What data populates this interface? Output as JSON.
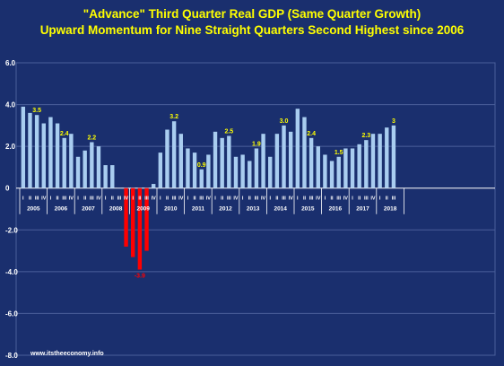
{
  "chart_data": {
    "type": "bar",
    "title": "\"Advance\" Third Quarter Real GDP (Same Quarter Growth)",
    "subtitle": "Upward Momentum for Nine Straight Quarters Second Highest since 2006",
    "source": "www.itstheeconomy.info",
    "ylim": [
      -8,
      6
    ],
    "yticks": [
      6,
      4,
      2,
      0,
      -2,
      -4,
      -6,
      -8
    ],
    "ytick_labels": [
      "6.0",
      "4.0",
      "2.0",
      "0",
      "-2.0",
      "-4.0",
      "-6.0",
      "-8.0"
    ],
    "grid": true,
    "quarter_labels": [
      "I",
      "II",
      "III",
      "IV"
    ],
    "years": [
      "2005",
      "2006",
      "2007",
      "2008",
      "2009",
      "2010",
      "2011",
      "2012",
      "2013",
      "2014",
      "2015",
      "2016",
      "2017",
      "2018"
    ],
    "values": [
      3.9,
      3.6,
      3.5,
      3.1,
      3.4,
      3.1,
      2.4,
      2.6,
      1.5,
      1.8,
      2.2,
      2.0,
      1.1,
      1.1,
      0.0,
      -2.8,
      -3.3,
      -3.9,
      -3.0,
      0.2,
      1.7,
      2.8,
      3.2,
      2.6,
      1.9,
      1.7,
      0.9,
      1.6,
      2.7,
      2.4,
      2.5,
      1.5,
      1.6,
      1.3,
      1.9,
      2.6,
      1.5,
      2.6,
      3.0,
      2.7,
      3.8,
      3.4,
      2.4,
      2.0,
      1.6,
      1.3,
      1.5,
      1.9,
      1.9,
      2.1,
      2.3,
      2.6,
      2.6,
      2.9,
      3.0
    ],
    "data_labels": [
      {
        "index": 2,
        "text": "3.5"
      },
      {
        "index": 6,
        "text": "2.4"
      },
      {
        "index": 10,
        "text": "2.2"
      },
      {
        "index": 17,
        "text": "-3.9"
      },
      {
        "index": 22,
        "text": "3.2"
      },
      {
        "index": 26,
        "text": "0.9"
      },
      {
        "index": 30,
        "text": "2.5"
      },
      {
        "index": 34,
        "text": "1.9"
      },
      {
        "index": 38,
        "text": "3.0"
      },
      {
        "index": 42,
        "text": "2.4"
      },
      {
        "index": 46,
        "text": "1.5"
      },
      {
        "index": 50,
        "text": "2.3"
      },
      {
        "index": 54,
        "text": "3"
      }
    ],
    "colors": {
      "background": "#1a2f6e",
      "positive_bar": "#a9cdf0",
      "negative_bar": "#ff0000",
      "gridline": "#4a5f9a",
      "title": "#ffff00",
      "positive_label": "#ffff00",
      "negative_label": "#ff0000",
      "text": "#ffffff"
    }
  }
}
